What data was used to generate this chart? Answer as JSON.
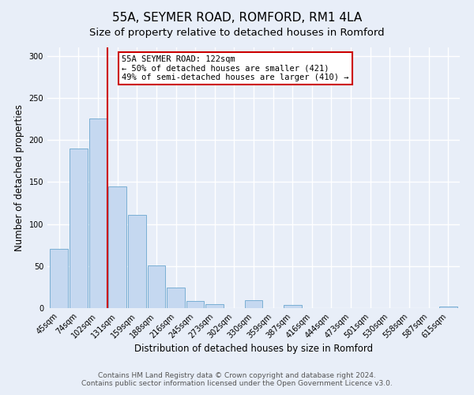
{
  "title": "55A, SEYMER ROAD, ROMFORD, RM1 4LA",
  "subtitle": "Size of property relative to detached houses in Romford",
  "xlabel": "Distribution of detached houses by size in Romford",
  "ylabel": "Number of detached properties",
  "bar_labels": [
    "45sqm",
    "74sqm",
    "102sqm",
    "131sqm",
    "159sqm",
    "188sqm",
    "216sqm",
    "245sqm",
    "273sqm",
    "302sqm",
    "330sqm",
    "359sqm",
    "387sqm",
    "416sqm",
    "444sqm",
    "473sqm",
    "501sqm",
    "530sqm",
    "558sqm",
    "587sqm",
    "615sqm"
  ],
  "bar_values": [
    70,
    190,
    225,
    145,
    111,
    51,
    24,
    8,
    5,
    0,
    9,
    0,
    4,
    0,
    0,
    0,
    0,
    0,
    0,
    0,
    2
  ],
  "bar_color": "#c5d8f0",
  "bar_edge_color": "#7aafd4",
  "vline_x": 2.5,
  "vline_color": "#cc0000",
  "vline_lw": 1.5,
  "annotation_text": "55A SEYMER ROAD: 122sqm\n← 50% of detached houses are smaller (421)\n49% of semi-detached houses are larger (410) →",
  "annotation_box_color": "white",
  "annotation_box_edge_color": "#cc0000",
  "ylim": [
    0,
    310
  ],
  "yticks": [
    0,
    50,
    100,
    150,
    200,
    250,
    300
  ],
  "footer_line1": "Contains HM Land Registry data © Crown copyright and database right 2024.",
  "footer_line2": "Contains public sector information licensed under the Open Government Licence v3.0.",
  "background_color": "#e8eef8",
  "plot_bg_color": "#e8eef8",
  "grid_color": "#ffffff",
  "title_fontsize": 11,
  "subtitle_fontsize": 9.5,
  "axis_label_fontsize": 8.5,
  "tick_fontsize": 7,
  "footer_fontsize": 6.5,
  "ann_fontsize": 7.5
}
